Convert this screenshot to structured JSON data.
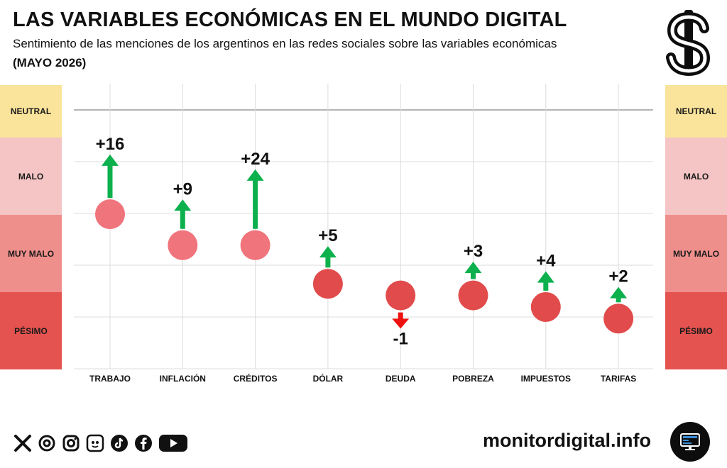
{
  "header": {
    "title": "LAS VARIABLES ECONÓMICAS EN EL MUNDO DIGITAL",
    "subtitle": "Sentimiento de las menciones de los argentinos en las redes sociales sobre las variables económicas",
    "period": "(MAYO 2026)"
  },
  "logo_icon": "dollar-sign-icon",
  "bands": [
    {
      "label": "NEUTRAL",
      "color": "#fae39a"
    },
    {
      "label": "MALO",
      "color": "#f5c4c4"
    },
    {
      "label": "MUY MALO",
      "color": "#ef8f8c"
    },
    {
      "label": "PÉSIMO",
      "color": "#e4534f"
    }
  ],
  "chart_data": {
    "type": "scatter",
    "title": "LAS VARIABLES ECONÓMICAS EN EL MUNDO DIGITAL",
    "subtitle": "Sentimiento de las menciones de los argentinos en las redes sociales sobre las variables económicas",
    "categories": [
      "TRABAJO",
      "INFLACIÓN",
      "CRÉDITOS",
      "DÓLAR",
      "DEUDA",
      "POBREZA",
      "IMPUESTOS",
      "TARIFAS"
    ],
    "sentiment_scale": [
      "NEUTRAL",
      "MALO",
      "MUY MALO",
      "PÉSIMO"
    ],
    "positions": [
      1.85,
      2.25,
      2.25,
      2.75,
      2.9,
      2.9,
      3.05,
      3.2
    ],
    "changes": [
      16,
      9,
      24,
      5,
      -1,
      3,
      4,
      2
    ],
    "change_labels": [
      "+16",
      "+9",
      "+24",
      "+5",
      "-1",
      "+3",
      "+4",
      "+2"
    ],
    "point_colors": [
      "#f0747c",
      "#f0747c",
      "#f0747c",
      "#e24b4b",
      "#e24b4b",
      "#e24b4b",
      "#e24b4b",
      "#e24b4b"
    ],
    "up_color": "#0cb04d",
    "down_color": "#ee1111",
    "grid": true
  },
  "footer": {
    "social_icons": [
      "x-icon",
      "threads-icon",
      "instagram-icon",
      "bluesky-icon",
      "tiktok-icon",
      "facebook-icon",
      "youtube-icon"
    ],
    "website": "monitordigital.info",
    "brand_icon": "monitor-icon"
  }
}
